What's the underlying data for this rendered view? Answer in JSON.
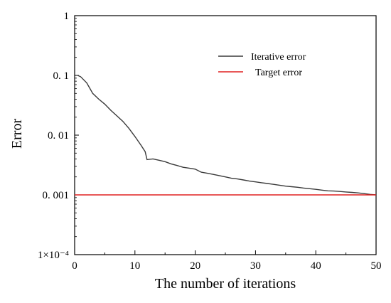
{
  "chart_data": {
    "type": "line",
    "xlabel": "The number of iterations",
    "ylabel": "Error",
    "xlim": [
      0,
      50
    ],
    "ylim": [
      0.0001,
      1
    ],
    "yscale": "log",
    "x_ticks": [
      0,
      10,
      20,
      30,
      40,
      50
    ],
    "x_tick_labels": [
      "0",
      "10",
      "20",
      "30",
      "40",
      "50"
    ],
    "y_ticks": [
      0.0001,
      0.001,
      0.01,
      0.1,
      1
    ],
    "y_tick_labels": [
      "1×10⁻⁴",
      "0. 001",
      "0. 01",
      "0. 1",
      "1"
    ],
    "grid": false,
    "legend_position": "top-right",
    "series": [
      {
        "name": "Iterative error",
        "color": "#3a3a3a",
        "x": [
          0.5,
          1,
          2,
          3,
          4,
          5,
          6,
          7,
          8,
          9,
          10,
          11,
          11.7,
          12,
          13,
          14,
          15,
          16,
          17,
          18,
          19,
          20,
          21,
          22,
          23,
          24,
          25,
          26,
          27,
          28,
          29,
          30,
          31,
          32,
          33,
          34,
          35,
          36,
          37,
          38,
          39,
          40,
          41,
          42,
          43,
          44,
          45,
          46,
          47,
          48,
          49,
          50
        ],
        "y": [
          0.1,
          0.095,
          0.075,
          0.05,
          0.04,
          0.033,
          0.026,
          0.021,
          0.017,
          0.013,
          0.0095,
          0.0068,
          0.0053,
          0.0039,
          0.004,
          0.0038,
          0.0036,
          0.0033,
          0.0031,
          0.0029,
          0.0028,
          0.0027,
          0.0024,
          0.0023,
          0.0022,
          0.0021,
          0.002,
          0.0019,
          0.00185,
          0.00178,
          0.0017,
          0.00165,
          0.0016,
          0.00155,
          0.0015,
          0.00145,
          0.0014,
          0.00137,
          0.00134,
          0.0013,
          0.00127,
          0.00124,
          0.0012,
          0.00117,
          0.00116,
          0.00114,
          0.00112,
          0.0011,
          0.00108,
          0.00105,
          0.00102,
          0.001
        ]
      },
      {
        "name": "Target error",
        "color": "#e02020",
        "x": [
          0,
          50
        ],
        "y": [
          0.001,
          0.001
        ]
      }
    ]
  }
}
